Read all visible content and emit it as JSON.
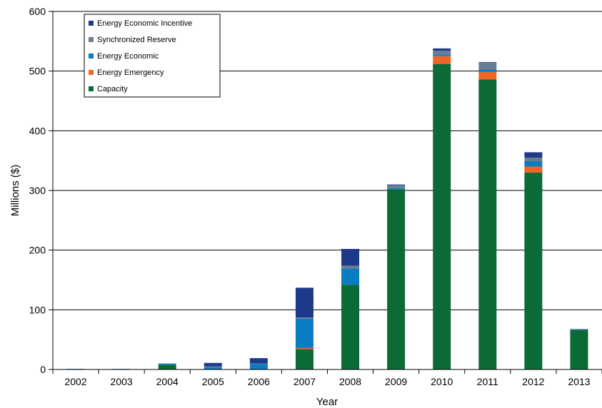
{
  "chart_data": {
    "type": "bar",
    "stacked": true,
    "title": "",
    "xlabel": "Year",
    "ylabel": "Millions ($)",
    "ylim": [
      0,
      600
    ],
    "yticks": [
      0,
      100,
      200,
      300,
      400,
      500,
      600
    ],
    "grid": true,
    "legend_position": "top-left",
    "categories": [
      "2002",
      "2003",
      "2004",
      "2005",
      "2006",
      "2007",
      "2008",
      "2009",
      "2010",
      "2011",
      "2012",
      "2013"
    ],
    "series": [
      {
        "name": "Capacity",
        "color": "#0b6a36",
        "values": [
          0,
          0,
          8,
          0,
          0,
          34,
          142,
          302,
          512,
          486,
          330,
          66
        ]
      },
      {
        "name": "Energy Emergency",
        "color": "#f26522",
        "values": [
          0,
          0,
          0,
          0,
          0,
          2,
          0,
          0,
          13,
          13,
          10,
          0
        ]
      },
      {
        "name": "Energy Economic",
        "color": "#0a7cc1",
        "values": [
          1,
          1,
          2,
          3,
          9,
          49,
          27,
          2,
          3,
          4,
          9,
          1
        ]
      },
      {
        "name": "Synchronized Reserve",
        "color": "#6d7d90",
        "values": [
          0,
          0,
          0,
          2,
          1,
          2,
          5,
          5,
          6,
          11,
          6,
          1
        ]
      },
      {
        "name": "Energy Economic Incentive",
        "color": "#1d3a8a",
        "values": [
          0,
          0,
          0,
          6,
          9,
          50,
          28,
          1,
          4,
          1,
          9,
          0
        ]
      }
    ],
    "legend_order": [
      "Energy Economic Incentive",
      "Synchronized Reserve",
      "Energy Economic",
      "Energy Emergency",
      "Capacity"
    ]
  }
}
